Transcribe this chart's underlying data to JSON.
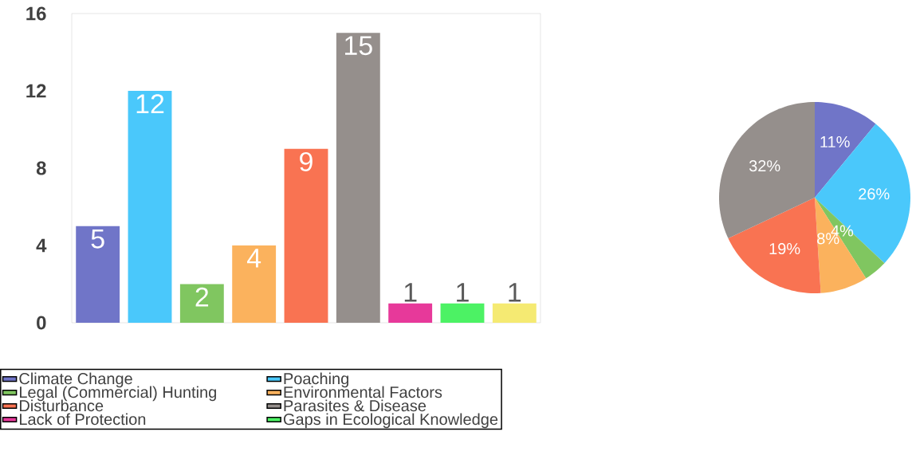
{
  "chart_data": [
    {
      "type": "bar",
      "stacked": true,
      "categories": [
        null,
        null,
        null,
        null,
        null,
        null,
        null,
        null,
        null
      ],
      "series": [
        {
          "name": "Climate Change",
          "color": "#7075c8",
          "values": [
            5,
            null,
            null,
            null,
            null,
            null,
            null,
            null,
            null
          ]
        },
        {
          "name": "Poaching",
          "color": "#4ac8fb",
          "values": [
            null,
            12,
            null,
            null,
            null,
            null,
            null,
            null,
            null
          ]
        },
        {
          "name": "Legal (Commercial) Hunting",
          "color": "#80c660",
          "values": [
            null,
            null,
            2,
            null,
            null,
            null,
            null,
            null,
            null
          ]
        },
        {
          "name": "Environmental Factors",
          "color": "#fbb25d",
          "values": [
            null,
            null,
            null,
            4,
            null,
            null,
            null,
            null,
            null
          ]
        },
        {
          "name": "Disturbance",
          "color": "#f97352",
          "values": [
            null,
            null,
            null,
            null,
            9,
            null,
            null,
            null,
            null
          ]
        },
        {
          "name": "Parasites & Disease",
          "color": "#958f8c",
          "values": [
            null,
            null,
            null,
            null,
            null,
            15,
            null,
            null,
            null
          ]
        },
        {
          "name": "Lack of Protection",
          "color": "#e7399a",
          "values": [
            null,
            null,
            null,
            null,
            null,
            null,
            1,
            null,
            null
          ]
        },
        {
          "name": "Gaps in Ecological Knowledge",
          "color": "#4cf264",
          "values": [
            null,
            null,
            null,
            null,
            null,
            null,
            null,
            1,
            null
          ]
        },
        {
          "color": "#f5ea72",
          "values": [
            null,
            null,
            null,
            null,
            null,
            null,
            null,
            null,
            1
          ]
        }
      ],
      "ylim": [
        0,
        16
      ],
      "yticks": [
        0,
        4,
        8,
        12,
        16
      ],
      "data_labels": true,
      "legend": "bottom",
      "tick_labels": "y"
    },
    {
      "type": "pie",
      "categories": [
        null,
        null,
        null,
        null,
        null,
        null
      ],
      "values": [
        11,
        26,
        4,
        8,
        19,
        32
      ],
      "colors": [
        "#7075c8",
        "#4ac8fb",
        "#80c660",
        "#fbb25d",
        "#f97352",
        "#958f8c"
      ],
      "value_labels": [
        "11%",
        "26%",
        "4%",
        "8%",
        "19%",
        "32%"
      ]
    }
  ]
}
